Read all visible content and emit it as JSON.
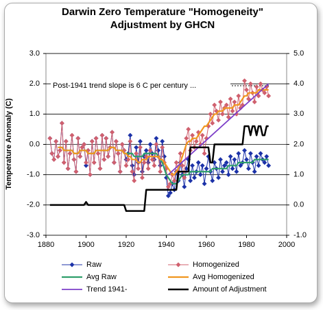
{
  "chart_data": {
    "type": "line",
    "title": [
      "Darwin Zero Temperature \"Homogeneity\"",
      "Adjustment by GHCN"
    ],
    "y_label": "Temperature Anomaly (C)",
    "annotation": "Post-1941 trend slope is 6 C per century ...",
    "xlim": [
      1880,
      2000
    ],
    "xticks": [
      1880,
      1900,
      1920,
      1940,
      1960,
      1980,
      2000
    ],
    "ylim": [
      -3,
      3
    ],
    "yticks": [
      {
        "value": -3,
        "label": "-3.0"
      },
      {
        "value": -2,
        "label": "-2.0"
      },
      {
        "value": -1,
        "label": "-1.0"
      },
      {
        "value": 0,
        "label": "0.0"
      },
      {
        "value": 1,
        "label": "1.0"
      },
      {
        "value": 2,
        "label": "2.0"
      },
      {
        "value": 3,
        "label": "3.0"
      }
    ],
    "y2lim": [
      -1,
      5
    ],
    "y2ticks": [
      {
        "value": -1,
        "label": "-1.0"
      },
      {
        "value": 0,
        "label": "0.0"
      },
      {
        "value": 1,
        "label": "1.0"
      },
      {
        "value": 2,
        "label": "2.0"
      },
      {
        "value": 3,
        "label": "3.0"
      },
      {
        "value": 4,
        "label": "4.0"
      },
      {
        "value": 5,
        "label": "5.0"
      }
    ],
    "grid": true,
    "legend": "bottom",
    "x": [
      1882,
      1883,
      1884,
      1885,
      1886,
      1887,
      1888,
      1889,
      1890,
      1891,
      1892,
      1893,
      1894,
      1895,
      1896,
      1897,
      1898,
      1899,
      1900,
      1901,
      1902,
      1903,
      1904,
      1905,
      1906,
      1907,
      1908,
      1909,
      1910,
      1911,
      1912,
      1913,
      1914,
      1915,
      1916,
      1917,
      1918,
      1919,
      1920,
      1921,
      1922,
      1923,
      1924,
      1925,
      1926,
      1927,
      1928,
      1929,
      1930,
      1931,
      1932,
      1933,
      1934,
      1935,
      1936,
      1937,
      1938,
      1939,
      1940,
      1941,
      1942,
      1943,
      1944,
      1945,
      1946,
      1947,
      1948,
      1949,
      1950,
      1951,
      1952,
      1953,
      1954,
      1955,
      1956,
      1957,
      1958,
      1959,
      1960,
      1961,
      1962,
      1963,
      1964,
      1965,
      1966,
      1967,
      1968,
      1969,
      1970,
      1971,
      1972,
      1973,
      1974,
      1975,
      1976,
      1977,
      1978,
      1979,
      1980,
      1981,
      1982,
      1983,
      1984,
      1985,
      1986,
      1987,
      1988,
      1989,
      1990,
      1991
    ],
    "series": [
      {
        "name": "Raw",
        "color": "#1c32a8",
        "marker": "diamond",
        "values": [
          0.2,
          -0.3,
          -0.5,
          0.1,
          -0.4,
          -0.2,
          0.7,
          -0.6,
          0.1,
          -0.8,
          -0.3,
          0.3,
          -0.5,
          -0.9,
          0.2,
          -0.4,
          -0.1,
          0.0,
          -0.7,
          -0.2,
          -1.0,
          0.1,
          -0.6,
          0.2,
          -0.3,
          -0.8,
          0.3,
          -0.5,
          0.2,
          -0.4,
          -0.1,
          0.4,
          -0.6,
          0.1,
          -0.3,
          -0.9,
          0.0,
          -0.2,
          -0.5,
          -0.3,
          0.3,
          -0.7,
          -1.0,
          -0.1,
          -0.6,
          0.1,
          -0.9,
          -0.4,
          -0.2,
          -0.6,
          0.0,
          -0.3,
          -0.5,
          0.2,
          -0.2,
          -0.7,
          0.1,
          -0.4,
          -1.1,
          -1.7,
          -1.6,
          -1.3,
          -1.5,
          -0.9,
          -1.2,
          -0.6,
          -1.0,
          -1.4,
          -0.8,
          -0.5,
          -1.2,
          -0.7,
          -1.1,
          -0.9,
          -0.6,
          -1.0,
          -0.7,
          -1.3,
          -0.8,
          -0.4,
          -0.9,
          -1.2,
          -0.6,
          -0.8,
          -1.1,
          -0.5,
          -0.9,
          -0.7,
          -0.6,
          -1.0,
          -0.4,
          -0.8,
          -0.5,
          -0.9,
          -0.3,
          -0.7,
          -0.6,
          -0.2,
          -0.5,
          -0.8,
          -0.3,
          -0.6,
          -0.9,
          -0.4,
          -0.7,
          -0.3,
          -0.5,
          -0.6,
          -0.4,
          -0.7
        ]
      },
      {
        "name": "Homogenized",
        "color": "#d0606e",
        "marker": "diamond",
        "values": [
          0.2,
          -0.3,
          -0.5,
          0.1,
          -0.4,
          -0.2,
          0.7,
          -0.6,
          0.1,
          -0.8,
          -0.3,
          0.3,
          -0.5,
          -0.9,
          0.2,
          -0.4,
          -0.1,
          0.0,
          -0.6,
          -0.2,
          -1.0,
          0.1,
          -0.6,
          0.2,
          -0.3,
          -0.8,
          0.3,
          -0.5,
          0.2,
          -0.4,
          -0.1,
          0.4,
          -0.6,
          0.1,
          -0.3,
          -0.9,
          0.0,
          -0.2,
          -0.7,
          -0.5,
          0.1,
          -0.9,
          -1.2,
          -0.3,
          -0.8,
          -0.1,
          -1.1,
          -0.6,
          -0.4,
          -0.8,
          -0.2,
          -0.5,
          -0.7,
          0.0,
          -0.4,
          -0.9,
          -0.1,
          -0.6,
          -0.8,
          -1.4,
          -1.3,
          -1.0,
          -1.2,
          -0.6,
          -0.9,
          -0.3,
          -0.7,
          -1.1,
          0.2,
          0.5,
          -0.2,
          0.3,
          -0.1,
          0.1,
          0.4,
          0.0,
          0.3,
          -0.3,
          0.2,
          0.6,
          1.0,
          0.7,
          1.3,
          1.1,
          0.8,
          1.4,
          1.0,
          1.2,
          1.3,
          0.9,
          1.5,
          1.1,
          1.4,
          1.0,
          1.6,
          1.2,
          1.3,
          2.1,
          1.8,
          1.5,
          2.0,
          1.7,
          1.4,
          1.9,
          1.6,
          2.0,
          1.8,
          1.7,
          1.9,
          1.6
        ]
      },
      {
        "name": "Avg Raw",
        "color": "#2e9e6a",
        "values": [
          null,
          null,
          null,
          null,
          -0.1,
          -0.1,
          -0.1,
          -0.2,
          -0.2,
          -0.2,
          -0.2,
          -0.2,
          -0.3,
          -0.3,
          -0.3,
          -0.2,
          -0.2,
          -0.2,
          -0.2,
          -0.3,
          -0.3,
          -0.3,
          -0.3,
          -0.2,
          -0.2,
          -0.2,
          -0.2,
          -0.2,
          -0.2,
          -0.2,
          -0.1,
          -0.1,
          -0.1,
          -0.2,
          -0.2,
          -0.2,
          -0.2,
          -0.3,
          -0.3,
          -0.3,
          -0.3,
          -0.3,
          -0.4,
          -0.4,
          -0.4,
          -0.4,
          -0.4,
          -0.3,
          -0.3,
          -0.3,
          -0.3,
          -0.3,
          -0.3,
          -0.3,
          -0.4,
          -0.5,
          -0.6,
          -0.8,
          -1.0,
          -1.1,
          -1.2,
          -1.3,
          -1.3,
          -1.3,
          -1.2,
          -1.1,
          -1.0,
          -1.0,
          -1.0,
          -1.0,
          -0.9,
          -0.9,
          -0.9,
          -0.9,
          -0.9,
          -0.9,
          -0.9,
          -0.9,
          -0.9,
          -0.9,
          -0.9,
          -0.8,
          -0.8,
          -0.8,
          -0.8,
          -0.8,
          -0.8,
          -0.8,
          -0.8,
          -0.7,
          -0.7,
          -0.7,
          -0.7,
          -0.7,
          -0.6,
          -0.6,
          -0.6,
          -0.6,
          -0.6,
          -0.6,
          -0.6,
          -0.6,
          -0.5,
          -0.5,
          -0.5,
          -0.5,
          -0.5,
          -0.5,
          -0.5,
          -0.5
        ]
      },
      {
        "name": "Avg Homogenized",
        "color": "#f0961e",
        "values": [
          null,
          null,
          null,
          null,
          -0.1,
          -0.1,
          -0.1,
          -0.2,
          -0.2,
          -0.2,
          -0.2,
          -0.2,
          -0.3,
          -0.3,
          -0.3,
          -0.2,
          -0.2,
          -0.2,
          -0.2,
          -0.3,
          -0.3,
          -0.3,
          -0.3,
          -0.2,
          -0.2,
          -0.2,
          -0.2,
          -0.2,
          -0.2,
          -0.2,
          -0.1,
          -0.1,
          -0.1,
          -0.2,
          -0.2,
          -0.2,
          -0.2,
          -0.3,
          -0.3,
          -0.4,
          -0.4,
          -0.5,
          -0.5,
          -0.5,
          -0.6,
          -0.6,
          -0.5,
          -0.5,
          -0.5,
          -0.4,
          -0.4,
          -0.4,
          -0.4,
          -0.4,
          -0.4,
          -0.5,
          -0.5,
          -0.6,
          -0.7,
          -0.8,
          -0.9,
          -1.0,
          -1.0,
          -0.9,
          -0.8,
          -0.6,
          -0.4,
          -0.2,
          0.0,
          0.1,
          0.1,
          0.2,
          0.2,
          0.2,
          0.3,
          0.4,
          0.5,
          0.6,
          0.6,
          0.7,
          0.8,
          0.9,
          1.0,
          1.0,
          1.1,
          1.1,
          1.1,
          1.2,
          1.2,
          1.2,
          1.2,
          1.2,
          1.3,
          1.3,
          1.3,
          1.4,
          1.5,
          1.6,
          1.6,
          1.7,
          1.7,
          1.7,
          1.7,
          1.7,
          1.8,
          1.8,
          1.8,
          1.8,
          1.8,
          1.8
        ]
      },
      {
        "name": "Trend 1941-",
        "color": "#7d3fc8",
        "x": [
          1941,
          1991
        ],
        "values": [
          -1.0,
          2.0
        ]
      },
      {
        "name": "Amount of Adjustment",
        "color": "#000000",
        "axis": "y2",
        "values": [
          0,
          0,
          0,
          0,
          0,
          0,
          0,
          0,
          0,
          0,
          0,
          0,
          0,
          0,
          0,
          0,
          0,
          0,
          0.1,
          0,
          0,
          0,
          0,
          0,
          0,
          0,
          0,
          0,
          0,
          0,
          0,
          0,
          0,
          0,
          0,
          0,
          0,
          0,
          -0.2,
          -0.2,
          -0.2,
          -0.2,
          -0.2,
          -0.2,
          -0.2,
          -0.2,
          -0.2,
          -0.2,
          0.5,
          0.5,
          0.5,
          0.5,
          0.5,
          0.5,
          0.5,
          0.5,
          0.5,
          0.5,
          0.5,
          0.5,
          0.5,
          0.5,
          0.5,
          0.5,
          1.1,
          1.1,
          1.1,
          1.1,
          1.1,
          1.1,
          1.9,
          1.9,
          1.9,
          1.9,
          1.9,
          1.9,
          1.9,
          1.9,
          1.9,
          1.9,
          1.4,
          1.4,
          2.0,
          2.0,
          2.0,
          2.0,
          2.0,
          2.0,
          2.0,
          2.0,
          2.0,
          2.0,
          2.0,
          2.0,
          2.0,
          2.0,
          2.0,
          2.6,
          2.6,
          2.6,
          2.3,
          2.6,
          2.6,
          2.3,
          2.6,
          2.6,
          2.3,
          2.3,
          2.6,
          2.6
        ]
      }
    ]
  }
}
